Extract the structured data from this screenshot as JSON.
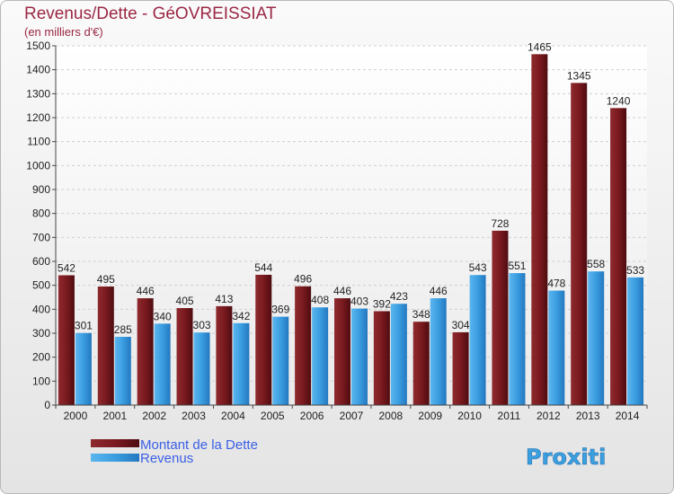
{
  "chart_data": {
    "type": "bar",
    "title": "Revenus/Dette - GéOVREISSIAT",
    "subtitle": "(en milliers d'€)",
    "xlabel": "",
    "ylabel": "",
    "ylim": [
      0,
      1500
    ],
    "yticks": [
      0,
      100,
      200,
      300,
      400,
      500,
      600,
      700,
      800,
      900,
      1000,
      1100,
      1200,
      1300,
      1400,
      1500
    ],
    "categories": [
      "2000",
      "2001",
      "2002",
      "2003",
      "2004",
      "2005",
      "2006",
      "2007",
      "2008",
      "2009",
      "2010",
      "2011",
      "2012",
      "2013",
      "2014"
    ],
    "series": [
      {
        "name": "Montant de la Dette",
        "color": "#7a1a1f",
        "values": [
          542,
          495,
          446,
          405,
          413,
          544,
          496,
          446,
          392,
          348,
          304,
          728,
          1465,
          1345,
          1240
        ]
      },
      {
        "name": "Revenus",
        "color": "#3a9de0",
        "values": [
          301,
          285,
          340,
          303,
          342,
          369,
          408,
          403,
          423,
          446,
          543,
          551,
          478,
          558,
          533
        ]
      }
    ],
    "legend": "bottom-left",
    "watermark": "Proxiti"
  }
}
